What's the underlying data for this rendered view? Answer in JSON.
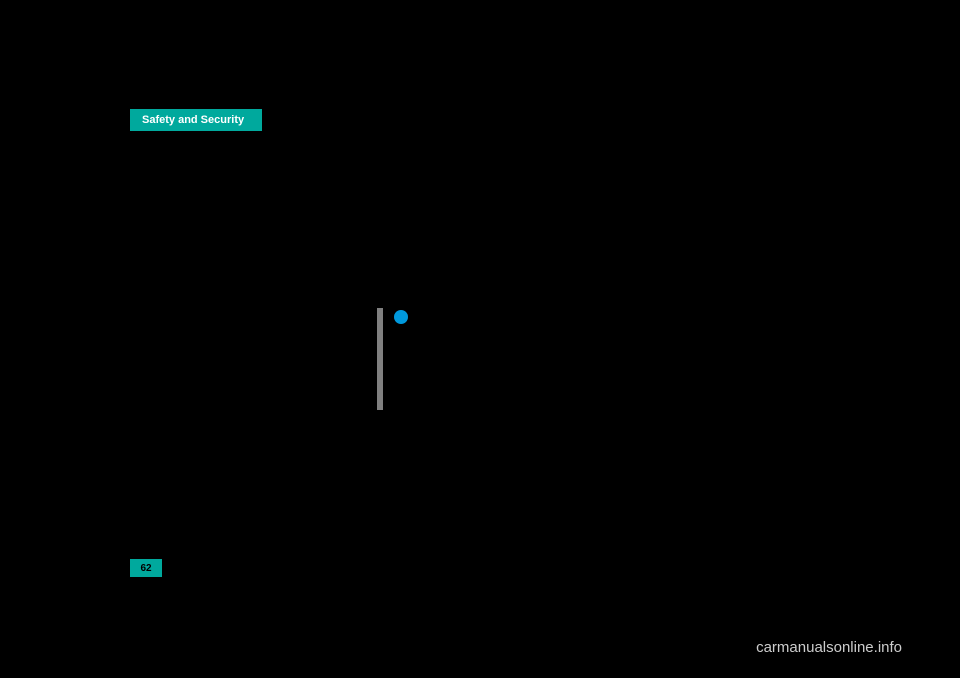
{
  "header": {
    "tab_label": "Safety and Security",
    "tab_background": "#00a99d",
    "tab_text_color": "#ffffff"
  },
  "page_number": {
    "value": "62",
    "background": "#00a99d",
    "text_color": "#000000"
  },
  "info_icon": {
    "color": "#0099dd"
  },
  "vertical_bar": {
    "color": "#808080"
  },
  "watermark": {
    "text": "carmanualsonline.info",
    "color": "#cccccc"
  },
  "page_background": "#000000"
}
